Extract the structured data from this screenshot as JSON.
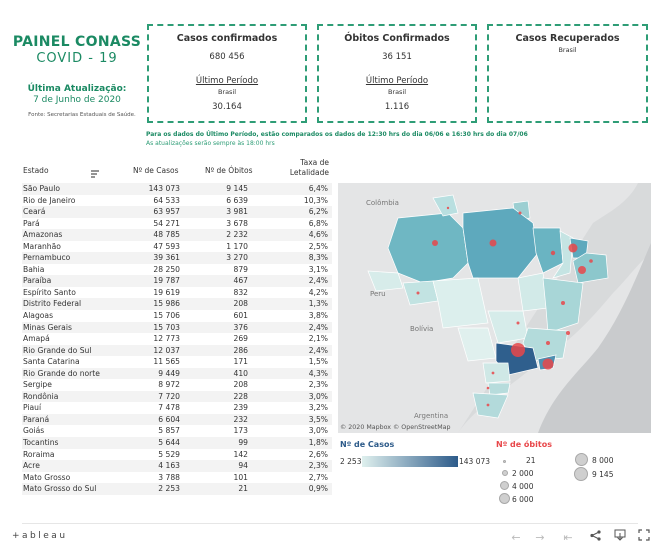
{
  "header": {
    "title": "PAINEL CONASS",
    "subtitle": "COVID - 19",
    "update_label": "Última Atualização:",
    "update_date": "7 de Junho de 2020",
    "source": "Fonte: Secretarias Estaduais de Saúde."
  },
  "kpis": {
    "confirmed": {
      "title": "Casos confirmados",
      "total": "680 456",
      "period_label": "Último Período",
      "region": "Brasil",
      "period_value": "30.164"
    },
    "deaths": {
      "title": "Óbitos Confirmados",
      "total": "36 151",
      "period_label": "Último Período",
      "region": "Brasil",
      "period_value": "1.116"
    },
    "recovered": {
      "title": "Casos Recuperados",
      "region": "Brasil"
    }
  },
  "notes": {
    "line1": "Para os dados do Último Período, estão comparados os dados de 12:30 hrs do dia 06/06 e 16:30 hrs do dia 07/06",
    "line2": "As atualizações serão sempre às 18:00 hrs"
  },
  "table": {
    "headers": {
      "state": "Estado",
      "cases": "Nº de Casos",
      "deaths": "Nº de Óbitos",
      "rate_line1": "Taxa de",
      "rate_line2": "Letalidade"
    },
    "rows": [
      [
        "São Paulo",
        "143 073",
        "9 145",
        "6,4%"
      ],
      [
        "Rio de Janeiro",
        "64 533",
        "6 639",
        "10,3%"
      ],
      [
        "Ceará",
        "63 957",
        "3 981",
        "6,2%"
      ],
      [
        "Pará",
        "54 271",
        "3 678",
        "6,8%"
      ],
      [
        "Amazonas",
        "48 785",
        "2 232",
        "4,6%"
      ],
      [
        "Maranhão",
        "47 593",
        "1 170",
        "2,5%"
      ],
      [
        "Pernambuco",
        "39 361",
        "3 270",
        "8,3%"
      ],
      [
        "Bahia",
        "28 250",
        "879",
        "3,1%"
      ],
      [
        "Paraíba",
        "19 787",
        "467",
        "2,4%"
      ],
      [
        "Espírito Santo",
        "19 619",
        "832",
        "4,2%"
      ],
      [
        "Distrito Federal",
        "15 986",
        "208",
        "1,3%"
      ],
      [
        "Alagoas",
        "15 706",
        "601",
        "3,8%"
      ],
      [
        "Minas Gerais",
        "15 703",
        "376",
        "2,4%"
      ],
      [
        "Amapá",
        "12 773",
        "269",
        "2,1%"
      ],
      [
        "Rio Grande do Sul",
        "12 037",
        "286",
        "2,4%"
      ],
      [
        "Santa Catarina",
        "11 565",
        "171",
        "1,5%"
      ],
      [
        "Rio Grande do norte",
        "9 449",
        "410",
        "4,3%"
      ],
      [
        "Sergipe",
        "8 972",
        "208",
        "2,3%"
      ],
      [
        "Rondônia",
        "7 720",
        "228",
        "3,0%"
      ],
      [
        "Piauí",
        "7 478",
        "239",
        "3,2%"
      ],
      [
        "Paraná",
        "6 604",
        "232",
        "3,5%"
      ],
      [
        "Goiás",
        "5 857",
        "173",
        "3,0%"
      ],
      [
        "Tocantins",
        "5 644",
        "99",
        "1,8%"
      ],
      [
        "Roraima",
        "5 529",
        "142",
        "2,6%"
      ],
      [
        "Acre",
        "4 163",
        "94",
        "2,3%"
      ],
      [
        "Mato Grosso",
        "3 788",
        "101",
        "2,7%"
      ],
      [
        "Mato Grosso do Sul",
        "2 253",
        "21",
        "0,9%"
      ]
    ]
  },
  "map": {
    "labels": {
      "colombia": "Colômbia",
      "peru": "Peru",
      "bolivia": "Bolívia",
      "argentina": "Argentina"
    },
    "credit": "© 2020 Mapbox © OpenStreetMap"
  },
  "legend": {
    "cases_title": "Nº de Casos",
    "cases_min": "2 253",
    "cases_max": "143 073",
    "deaths_title": "Nº de óbitos",
    "sizes": [
      "21",
      "2 000",
      "4 000",
      "6 000",
      "8 000",
      "9 145"
    ]
  },
  "footer": {
    "logo": "+ableau"
  },
  "colors": {
    "brand_green": "#1b8a63",
    "dashed_border": "#2e9d76",
    "case_light": "#dff0ee",
    "case_dark": "#2d5b8a",
    "death_bubble": "#e8474a"
  }
}
